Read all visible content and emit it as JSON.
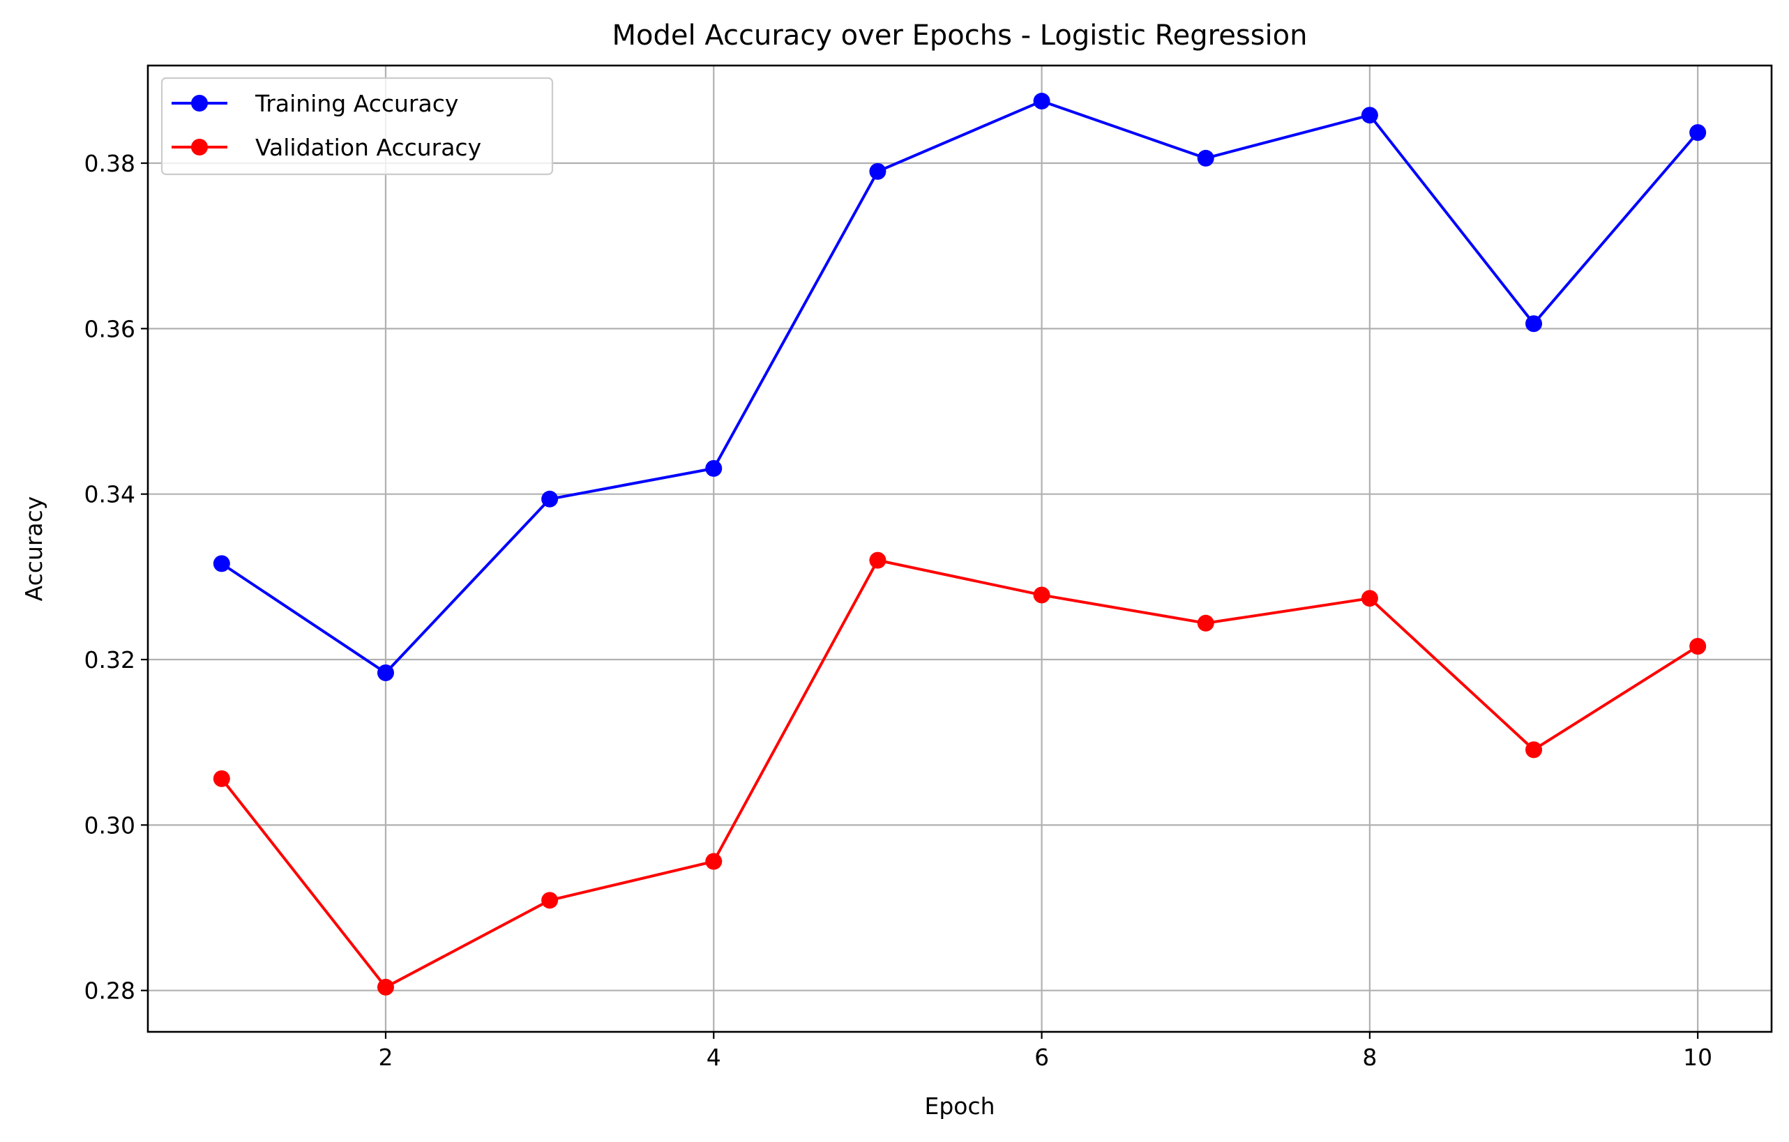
{
  "chart_data": {
    "type": "line",
    "title": "Model Accuracy over Epochs - Logistic Regression",
    "xlabel": "Epoch",
    "ylabel": "Accuracy",
    "x": [
      1,
      2,
      3,
      4,
      5,
      6,
      7,
      8,
      9,
      10
    ],
    "xlim": [
      0.55,
      10.45
    ],
    "ylim": [
      0.275,
      0.3918
    ],
    "xticks": [
      2,
      4,
      6,
      8,
      10
    ],
    "xtick_labels": [
      "2",
      "4",
      "6",
      "8",
      "10"
    ],
    "yticks": [
      0.28,
      0.3,
      0.32,
      0.34,
      0.36,
      0.38
    ],
    "ytick_labels": [
      "0.28",
      "0.30",
      "0.32",
      "0.34",
      "0.36",
      "0.38"
    ],
    "grid": true,
    "legend_position": "top-left",
    "series": [
      {
        "name": "Training Accuracy",
        "color": "#0000ff",
        "marker": "circle",
        "values": [
          0.3316,
          0.3184,
          0.3394,
          0.3431,
          0.379,
          0.3875,
          0.3806,
          0.3858,
          0.3606,
          0.3837
        ]
      },
      {
        "name": "Validation Accuracy",
        "color": "#ff0000",
        "marker": "circle",
        "values": [
          0.3056,
          0.2804,
          0.2909,
          0.2956,
          0.332,
          0.3278,
          0.3244,
          0.3274,
          0.3091,
          0.3216
        ]
      }
    ]
  }
}
